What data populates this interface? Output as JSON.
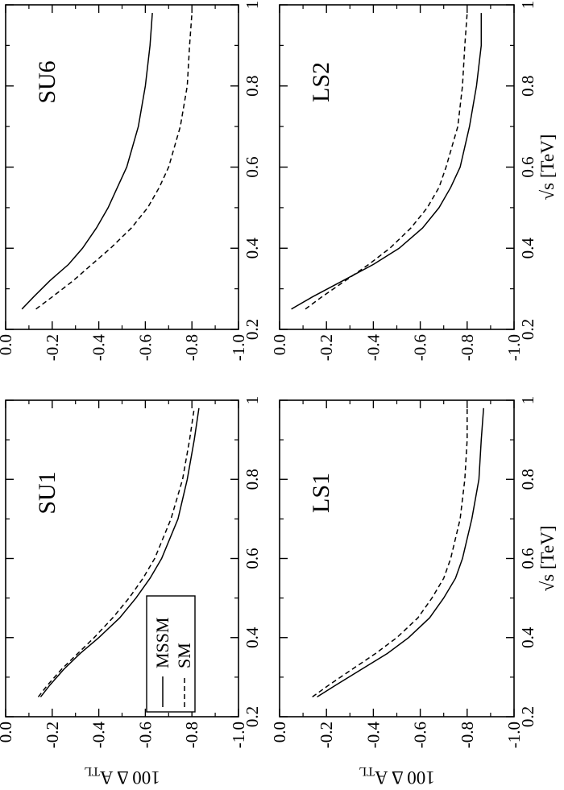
{
  "chart_data": [
    {
      "type": "line",
      "panel": "SU1",
      "xlabel": "",
      "ylabel": "100 Δ A_TL",
      "xlim": [
        0.2,
        1.0
      ],
      "ylim": [
        -1.0,
        0.0
      ],
      "xticks": [
        "0.2",
        "0.4",
        "0.6",
        "0.8",
        "1"
      ],
      "yticks": [
        "0.0",
        "-0.2",
        "-0.4",
        "-0.6",
        "-0.8",
        "-1.0"
      ],
      "legend": {
        "position": "lower-left",
        "entries": [
          "MSSM",
          "SM"
        ]
      },
      "series": [
        {
          "name": "MSSM",
          "style": "solid",
          "x": [
            0.25,
            0.28,
            0.32,
            0.36,
            0.4,
            0.45,
            0.5,
            0.55,
            0.6,
            0.7,
            0.8,
            0.9,
            0.98
          ],
          "y": [
            -0.15,
            -0.19,
            -0.25,
            -0.32,
            -0.4,
            -0.49,
            -0.56,
            -0.62,
            -0.67,
            -0.74,
            -0.78,
            -0.81,
            -0.83
          ]
        },
        {
          "name": "SM",
          "style": "dashed",
          "x": [
            0.25,
            0.28,
            0.32,
            0.36,
            0.4,
            0.45,
            0.5,
            0.55,
            0.6,
            0.7,
            0.8,
            0.9,
            0.98
          ],
          "y": [
            -0.14,
            -0.18,
            -0.24,
            -0.31,
            -0.38,
            -0.46,
            -0.53,
            -0.59,
            -0.64,
            -0.71,
            -0.76,
            -0.79,
            -0.81
          ]
        }
      ]
    },
    {
      "type": "line",
      "panel": "SU6",
      "xlabel": "",
      "ylabel": "",
      "xlim": [
        0.2,
        1.0
      ],
      "ylim": [
        -1.0,
        0.0
      ],
      "xticks": [
        "0.2",
        "0.4",
        "0.6",
        "0.8",
        "1"
      ],
      "yticks": [
        "0.0",
        "-0.2",
        "-0.4",
        "-0.6",
        "-0.8",
        "-1.0"
      ],
      "series": [
        {
          "name": "MSSM",
          "style": "solid",
          "x": [
            0.25,
            0.28,
            0.32,
            0.36,
            0.4,
            0.45,
            0.5,
            0.55,
            0.6,
            0.7,
            0.8,
            0.9,
            0.98
          ],
          "y": [
            -0.07,
            -0.12,
            -0.19,
            -0.27,
            -0.33,
            -0.39,
            -0.44,
            -0.48,
            -0.52,
            -0.57,
            -0.6,
            -0.62,
            -0.63
          ]
        },
        {
          "name": "SM",
          "style": "dashed",
          "x": [
            0.25,
            0.28,
            0.32,
            0.36,
            0.4,
            0.45,
            0.5,
            0.55,
            0.6,
            0.7,
            0.8,
            0.9,
            0.98
          ],
          "y": [
            -0.13,
            -0.2,
            -0.29,
            -0.37,
            -0.45,
            -0.54,
            -0.61,
            -0.66,
            -0.7,
            -0.75,
            -0.78,
            -0.79,
            -0.8
          ]
        }
      ]
    },
    {
      "type": "line",
      "panel": "LS1",
      "xlabel": "√s  [TeV]",
      "ylabel": "100 Δ A_TL",
      "xlim": [
        0.2,
        1.0
      ],
      "ylim": [
        -1.0,
        0.0
      ],
      "xticks": [
        "0.2",
        "0.4",
        "0.6",
        "0.8",
        "1"
      ],
      "yticks": [
        "0.0",
        "-0.2",
        "-0.4",
        "-0.6",
        "-0.8",
        "-1.0"
      ],
      "series": [
        {
          "name": "MSSM",
          "style": "solid",
          "x": [
            0.25,
            0.28,
            0.32,
            0.36,
            0.4,
            0.45,
            0.5,
            0.55,
            0.6,
            0.7,
            0.8,
            0.9,
            0.98
          ],
          "y": [
            -0.16,
            -0.24,
            -0.35,
            -0.46,
            -0.55,
            -0.64,
            -0.7,
            -0.75,
            -0.78,
            -0.82,
            -0.85,
            -0.86,
            -0.87
          ]
        },
        {
          "name": "SM",
          "style": "dashed",
          "x": [
            0.25,
            0.28,
            0.32,
            0.36,
            0.4,
            0.45,
            0.5,
            0.55,
            0.6,
            0.7,
            0.8,
            0.9,
            0.98
          ],
          "y": [
            -0.14,
            -0.21,
            -0.31,
            -0.41,
            -0.5,
            -0.59,
            -0.65,
            -0.7,
            -0.73,
            -0.77,
            -0.79,
            -0.8,
            -0.8
          ]
        }
      ]
    },
    {
      "type": "line",
      "panel": "LS2",
      "xlabel": "√s  [TeV]",
      "ylabel": "",
      "xlim": [
        0.2,
        1.0
      ],
      "ylim": [
        -1.0,
        0.0
      ],
      "xticks": [
        "0.2",
        "0.4",
        "0.6",
        "0.8",
        "1"
      ],
      "yticks": [
        "0.0",
        "-0.2",
        "-0.4",
        "-0.6",
        "-0.8",
        "-1.0"
      ],
      "series": [
        {
          "name": "MSSM",
          "style": "solid",
          "x": [
            0.25,
            0.28,
            0.32,
            0.36,
            0.4,
            0.45,
            0.5,
            0.55,
            0.6,
            0.7,
            0.8,
            0.9,
            0.98
          ],
          "y": [
            -0.05,
            -0.14,
            -0.27,
            -0.4,
            -0.51,
            -0.61,
            -0.68,
            -0.73,
            -0.77,
            -0.81,
            -0.84,
            -0.86,
            -0.86
          ]
        },
        {
          "name": "SM",
          "style": "dashed",
          "x": [
            0.25,
            0.28,
            0.32,
            0.36,
            0.4,
            0.45,
            0.5,
            0.55,
            0.6,
            0.7,
            0.8,
            0.9,
            0.98
          ],
          "y": [
            -0.11,
            -0.18,
            -0.28,
            -0.38,
            -0.47,
            -0.56,
            -0.63,
            -0.68,
            -0.71,
            -0.76,
            -0.78,
            -0.79,
            -0.8
          ]
        }
      ]
    }
  ]
}
